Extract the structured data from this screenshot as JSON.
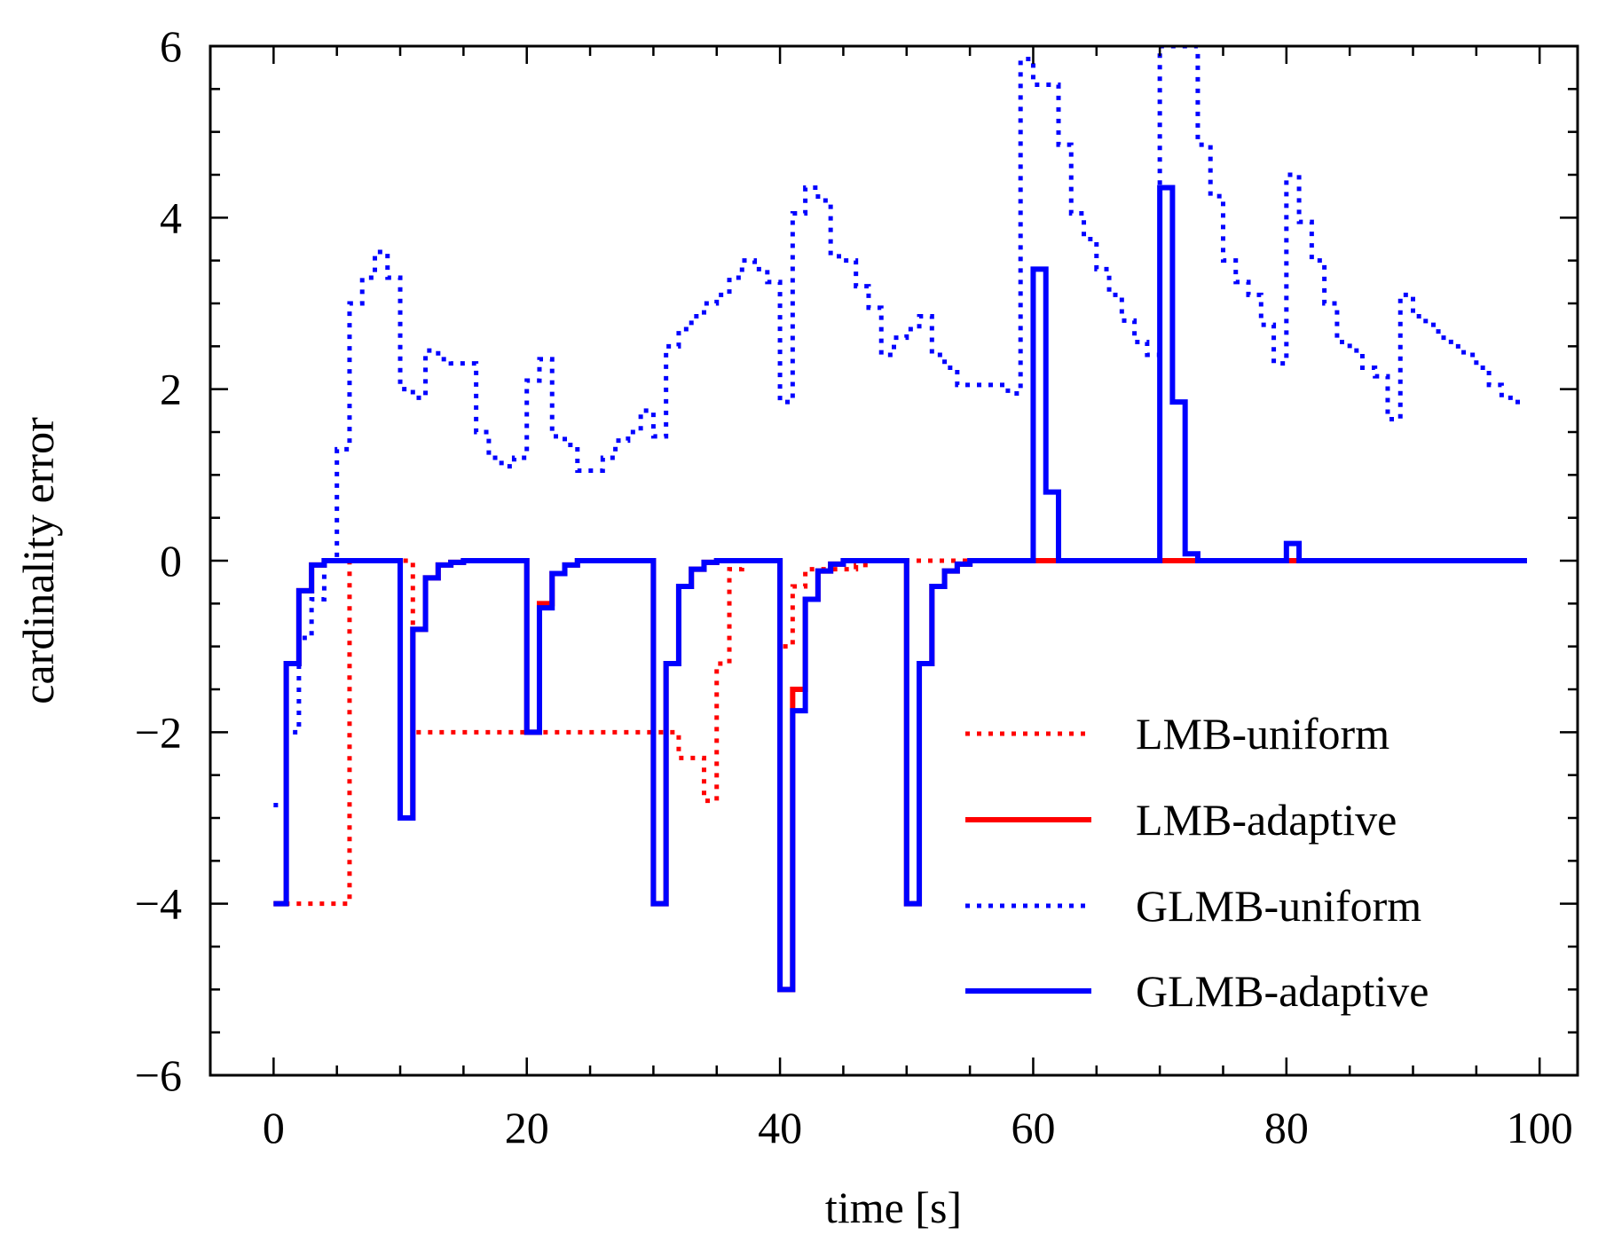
{
  "chart_data": {
    "type": "line",
    "title": "",
    "xlabel": "time [s]",
    "ylabel": "cardinality error",
    "xlim": [
      -5,
      103
    ],
    "ylim": [
      -6,
      6
    ],
    "xticks": [
      0,
      20,
      40,
      60,
      80,
      100
    ],
    "xtick_labels": [
      "0",
      "20",
      "40",
      "60",
      "80",
      "100"
    ],
    "yticks": [
      -6,
      -4,
      -2,
      0,
      2,
      4,
      6
    ],
    "ytick_labels": [
      "−6",
      "−4",
      "−2",
      "0",
      "2",
      "4",
      "6"
    ],
    "grid": false,
    "legend_position": "lower-right",
    "step": true,
    "series": [
      {
        "name": "LMB-uniform",
        "color": "#ff0000",
        "style": "dotted",
        "x": [
          0,
          1,
          2,
          3,
          4,
          5,
          6,
          7,
          8,
          9,
          10,
          11,
          12,
          13,
          14,
          15,
          16,
          17,
          18,
          19,
          20,
          21,
          22,
          23,
          24,
          25,
          26,
          27,
          28,
          29,
          30,
          31,
          32,
          33,
          34,
          35,
          36,
          37,
          38,
          39,
          40,
          41,
          42,
          43,
          44,
          45,
          46,
          47,
          48,
          49,
          50,
          51,
          52,
          53,
          54,
          55,
          56,
          57,
          58,
          59,
          60,
          61,
          62,
          63,
          64,
          65,
          66,
          67,
          68,
          69,
          70,
          71,
          72,
          73,
          74,
          75,
          76,
          77,
          78,
          79,
          80,
          81,
          82,
          83,
          84,
          85,
          86,
          87,
          88,
          89,
          90,
          91,
          92,
          93,
          94,
          95,
          96,
          97,
          98,
          99
        ],
        "y": [
          -4,
          -4,
          -4,
          -4,
          -4,
          -4,
          0,
          0,
          0,
          0,
          0,
          -2,
          -2,
          -2,
          -2,
          -2,
          -2,
          -2,
          -2,
          -2,
          -2,
          -2,
          -2,
          -2,
          -2,
          -2,
          -2,
          -2,
          -2,
          -2,
          -2,
          -2,
          -2.3,
          -2.3,
          -2.8,
          -1.2,
          -0.1,
          0,
          0,
          0,
          -1,
          -0.3,
          -0.1,
          -0.1,
          -0.1,
          -0.1,
          -0.05,
          0,
          0,
          0,
          0,
          0,
          0,
          0,
          0,
          0,
          0,
          0,
          0,
          0,
          0,
          0,
          0,
          0,
          0,
          0,
          0,
          0,
          0,
          0,
          0,
          0,
          0,
          0,
          0,
          0,
          0,
          0,
          0,
          0,
          0,
          0,
          0,
          0,
          0,
          0,
          0,
          0,
          0,
          0,
          0,
          0,
          0,
          0,
          0,
          0,
          0,
          0,
          0,
          0
        ]
      },
      {
        "name": "LMB-adaptive",
        "color": "#ff0000",
        "style": "solid",
        "x": [
          0,
          1,
          2,
          3,
          4,
          5,
          6,
          7,
          8,
          9,
          10,
          11,
          12,
          13,
          14,
          15,
          16,
          17,
          18,
          19,
          20,
          21,
          22,
          23,
          24,
          25,
          26,
          27,
          28,
          29,
          30,
          31,
          32,
          33,
          34,
          35,
          36,
          37,
          38,
          39,
          40,
          41,
          42,
          43,
          44,
          45,
          46,
          47,
          48,
          49,
          50,
          51,
          52,
          53,
          54,
          55,
          56,
          57,
          58,
          59,
          60,
          61,
          62,
          63,
          64,
          65,
          66,
          67,
          68,
          69,
          70,
          71,
          72,
          73,
          74,
          75,
          76,
          77,
          78,
          79,
          80,
          81,
          82,
          83,
          84,
          85,
          86,
          87,
          88,
          89,
          90,
          91,
          92,
          93,
          94,
          95,
          96,
          97,
          98,
          99
        ],
        "y": [
          -4,
          -1.2,
          -0.35,
          -0.05,
          0,
          0,
          0,
          0,
          0,
          0,
          -3,
          -0.8,
          -0.2,
          -0.05,
          -0.02,
          0,
          0,
          0,
          0,
          0,
          -2,
          -0.5,
          -0.15,
          -0.05,
          0,
          0,
          0,
          0,
          0,
          0,
          -4,
          -1.2,
          -0.3,
          -0.1,
          -0.02,
          0,
          0,
          0,
          0,
          0,
          -5,
          -1.5,
          -0.45,
          -0.12,
          -0.04,
          0,
          0,
          0,
          0,
          0,
          -4,
          -1.2,
          -0.3,
          -0.12,
          -0.04,
          0,
          0,
          0,
          0,
          0,
          0,
          0,
          0,
          0,
          0,
          0,
          0,
          0,
          0,
          0,
          0,
          0,
          0,
          0,
          0,
          0,
          0,
          0,
          0,
          0,
          0,
          0,
          0,
          0,
          0,
          0,
          0,
          0,
          0,
          0,
          0,
          0,
          0,
          0,
          0,
          0,
          0,
          0,
          0,
          0
        ]
      },
      {
        "name": "GLMB-uniform",
        "color": "#0000ff",
        "style": "dotted",
        "x": [
          0,
          1,
          2,
          3,
          4,
          5,
          6,
          7,
          8,
          9,
          10,
          11,
          12,
          13,
          14,
          15,
          16,
          17,
          18,
          19,
          20,
          21,
          22,
          23,
          24,
          25,
          26,
          27,
          28,
          29,
          30,
          31,
          32,
          33,
          34,
          35,
          36,
          37,
          38,
          39,
          40,
          41,
          42,
          43,
          44,
          45,
          46,
          47,
          48,
          49,
          50,
          51,
          52,
          53,
          54,
          55,
          56,
          57,
          58,
          59,
          60,
          61,
          62,
          63,
          64,
          65,
          66,
          67,
          68,
          69,
          70,
          71,
          72,
          73,
          74,
          75,
          76,
          77,
          78,
          79,
          80,
          81,
          82,
          83,
          84,
          85,
          86,
          87,
          88,
          89,
          90,
          91,
          92,
          93,
          94,
          95,
          96,
          97,
          98,
          99
        ],
        "y": [
          -2.85,
          -2,
          -0.9,
          -0.45,
          0,
          1.3,
          3,
          3.3,
          3.6,
          3.3,
          2,
          1.9,
          2.45,
          2.35,
          2.3,
          2.3,
          1.5,
          1.2,
          1.1,
          1.2,
          2.1,
          2.35,
          1.45,
          1.35,
          1.05,
          1.05,
          1.2,
          1.4,
          1.5,
          1.75,
          1.45,
          2.5,
          2.7,
          2.85,
          3,
          3.1,
          3.3,
          3.5,
          3.4,
          3.25,
          1.85,
          4.05,
          4.35,
          4.2,
          3.55,
          3.5,
          3.2,
          2.95,
          2.4,
          2.6,
          2.7,
          2.85,
          2.4,
          2.25,
          2.05,
          2.05,
          2.05,
          2.05,
          1.95,
          5.85,
          5.55,
          5.55,
          4.85,
          4.05,
          3.75,
          3.4,
          3.1,
          2.8,
          2.55,
          2.4,
          6,
          6,
          6,
          4.85,
          4.25,
          3.5,
          3.25,
          3.1,
          2.75,
          2.3,
          4.5,
          3.95,
          3.5,
          3,
          2.55,
          2.45,
          2.25,
          2.15,
          1.65,
          3.1,
          2.85,
          2.75,
          2.6,
          2.5,
          2.4,
          2.25,
          2.05,
          1.9,
          1.85,
          1.85
        ]
      },
      {
        "name": "GLMB-adaptive",
        "color": "#0000ff",
        "style": "solid",
        "x": [
          0,
          1,
          2,
          3,
          4,
          5,
          6,
          7,
          8,
          9,
          10,
          11,
          12,
          13,
          14,
          15,
          16,
          17,
          18,
          19,
          20,
          21,
          22,
          23,
          24,
          25,
          26,
          27,
          28,
          29,
          30,
          31,
          32,
          33,
          34,
          35,
          36,
          37,
          38,
          39,
          40,
          41,
          42,
          43,
          44,
          45,
          46,
          47,
          48,
          49,
          50,
          51,
          52,
          53,
          54,
          55,
          56,
          57,
          58,
          59,
          60,
          61,
          62,
          63,
          64,
          65,
          66,
          67,
          68,
          69,
          70,
          71,
          72,
          73,
          74,
          75,
          76,
          77,
          78,
          79,
          80,
          81,
          82,
          83,
          84,
          85,
          86,
          87,
          88,
          89,
          90,
          91,
          92,
          93,
          94,
          95,
          96,
          97,
          98,
          99
        ],
        "y": [
          -4,
          -1.2,
          -0.35,
          -0.05,
          0,
          0,
          0,
          0,
          0,
          0,
          -3,
          -0.8,
          -0.2,
          -0.05,
          -0.02,
          0,
          0,
          0,
          0,
          0,
          -2,
          -0.55,
          -0.15,
          -0.05,
          0,
          0,
          0,
          0,
          0,
          0,
          -4,
          -1.2,
          -0.3,
          -0.1,
          -0.02,
          0,
          0,
          0,
          0,
          0,
          -5,
          -1.75,
          -0.45,
          -0.12,
          -0.04,
          0,
          0,
          0,
          0,
          0,
          -4,
          -1.2,
          -0.3,
          -0.12,
          -0.04,
          0,
          0,
          0,
          0,
          0,
          3.4,
          0.8,
          0,
          0,
          0,
          0,
          0,
          0,
          0,
          0,
          4.35,
          1.85,
          0.08,
          0,
          0,
          0,
          0,
          0,
          0,
          0,
          0.2,
          0,
          0,
          0,
          0,
          0,
          0,
          0,
          0,
          0,
          0,
          0,
          0,
          0,
          0,
          0,
          0,
          0,
          0,
          0
        ]
      }
    ]
  }
}
